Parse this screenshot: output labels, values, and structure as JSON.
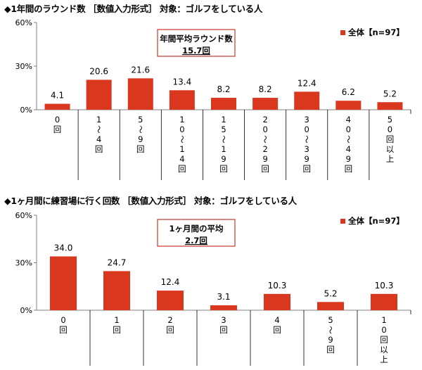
{
  "sections": [
    {
      "title": "◆1年間のラウンド数 ［数値入力形式］ 対象：ゴルフをしている人",
      "avg_box": {
        "line1": "年間平均ラウンド数",
        "line2": "15.7回"
      }
    },
    {
      "title": "◆1ヶ月間に練習場に行く回数 ［数値入力形式］ 対象：ゴルフをしている人",
      "avg_box": {
        "line1": "1ヶ月間の平均",
        "line2": "2.7回"
      }
    }
  ],
  "colors": {
    "bar": "#d9381e",
    "axis": "#808080",
    "box_border": "#c0392b",
    "text": "#000000"
  },
  "chart_data": [
    {
      "type": "bar",
      "title": "◆1年間のラウンド数 ［数値入力形式］ 対象：ゴルフをしている人",
      "categories": [
        "0回",
        "1〜4回",
        "5〜9回",
        "10〜14回",
        "15〜19回",
        "20〜29回",
        "30〜39回",
        "40〜49回",
        "50回以上"
      ],
      "category_labels_vertical": [
        [
          "0",
          "回"
        ],
        [
          "1",
          "〜",
          "4",
          "回"
        ],
        [
          "5",
          "〜",
          "9",
          "回"
        ],
        [
          "1",
          "0",
          "〜",
          "1",
          "4",
          "回"
        ],
        [
          "1",
          "5",
          "〜",
          "1",
          "9",
          "回"
        ],
        [
          "2",
          "0",
          "〜",
          "2",
          "9",
          "回"
        ],
        [
          "3",
          "0",
          "〜",
          "3",
          "9",
          "回"
        ],
        [
          "4",
          "0",
          "〜",
          "4",
          "9",
          "回"
        ],
        [
          "5",
          "0",
          "回",
          "以",
          "上"
        ]
      ],
      "series": [
        {
          "name": "全体【n=97】",
          "values": [
            4.1,
            20.6,
            21.6,
            13.4,
            8.2,
            8.2,
            12.4,
            6.2,
            5.2
          ]
        }
      ],
      "value_labels": [
        "4.1",
        "20.6",
        "21.6",
        "13.4",
        "8.2",
        "8.2",
        "12.4",
        "6.2",
        "5.2"
      ],
      "yticks": [
        "0%",
        "30%",
        "60%"
      ],
      "ylim": [
        0,
        60
      ],
      "legend_position": "top-right",
      "grid": false
    },
    {
      "type": "bar",
      "title": "◆1ヶ月間に練習場に行く回数 ［数値入力形式］ 対象：ゴルフをしている人",
      "categories": [
        "0回",
        "1回",
        "2回",
        "3回",
        "4回",
        "5〜9回",
        "10回以上"
      ],
      "category_labels_vertical": [
        [
          "0",
          "回"
        ],
        [
          "1",
          "回"
        ],
        [
          "2",
          "回"
        ],
        [
          "3",
          "回"
        ],
        [
          "4",
          "回"
        ],
        [
          "5",
          "〜",
          "9",
          "回"
        ],
        [
          "1",
          "0",
          "回",
          "以",
          "上"
        ]
      ],
      "series": [
        {
          "name": "全体【n=97】",
          "values": [
            34.0,
            24.7,
            12.4,
            3.1,
            10.3,
            5.2,
            10.3
          ]
        }
      ],
      "value_labels": [
        "34.0",
        "24.7",
        "12.4",
        "3.1",
        "10.3",
        "5.2",
        "10.3"
      ],
      "yticks": [
        "0%",
        "30%",
        "60%"
      ],
      "ylim": [
        0,
        60
      ],
      "legend_position": "top-right",
      "grid": false
    }
  ]
}
